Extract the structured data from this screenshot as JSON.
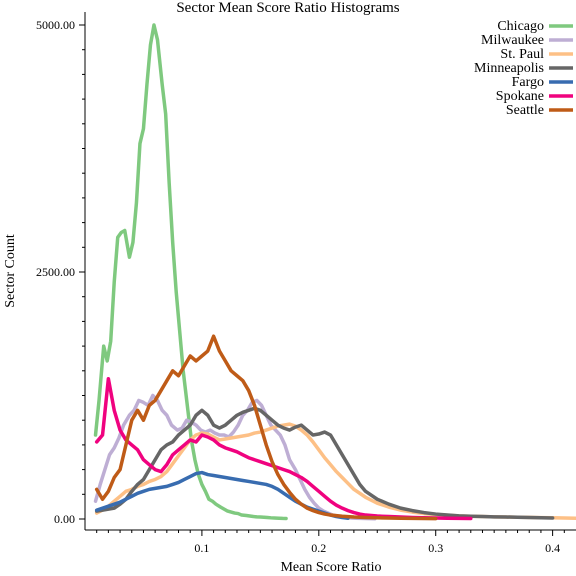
{
  "chart_data": {
    "type": "line",
    "title": "Sector Mean Score Ratio Histograms",
    "xlabel": "Mean Score Ratio",
    "ylabel": "Sector Count",
    "xlim": [
      0.0,
      0.42
    ],
    "ylim": [
      0,
      5000
    ],
    "xticks": [
      0.1,
      0.2,
      0.3,
      0.4
    ],
    "xtick_labels": [
      "0.1",
      "0.2",
      "0.3",
      "0.4"
    ],
    "yticks": [
      0,
      2500,
      5000
    ],
    "ytick_labels": [
      "0.00",
      "2500.00",
      "5000.00"
    ],
    "grid": false,
    "legend_position": "top-right",
    "series": [
      {
        "name": "Chicago",
        "color": "#7fc97f",
        "x": [
          0.009,
          0.012,
          0.016,
          0.019,
          0.022,
          0.025,
          0.028,
          0.031,
          0.034,
          0.038,
          0.041,
          0.044,
          0.047,
          0.05,
          0.053,
          0.056,
          0.059,
          0.062,
          0.066,
          0.069,
          0.072,
          0.075,
          0.078,
          0.081,
          0.084,
          0.088,
          0.091,
          0.094,
          0.097,
          0.1,
          0.103,
          0.106,
          0.109,
          0.112,
          0.116,
          0.119,
          0.122,
          0.125,
          0.128,
          0.131,
          0.134,
          0.138,
          0.141,
          0.144,
          0.147,
          0.15,
          0.153,
          0.156,
          0.159,
          0.162,
          0.166,
          0.169,
          0.172
        ],
        "values": [
          850,
          1200,
          1750,
          1600,
          1800,
          2400,
          2850,
          2900,
          2920,
          2650,
          2800,
          3200,
          3800,
          3950,
          4400,
          4800,
          5000,
          4850,
          4400,
          4100,
          3400,
          2800,
          2300,
          1900,
          1500,
          1100,
          800,
          600,
          450,
          350,
          280,
          200,
          180,
          150,
          120,
          100,
          80,
          70,
          60,
          55,
          40,
          35,
          30,
          25,
          22,
          20,
          18,
          15,
          12,
          10,
          8,
          6,
          5
        ]
      },
      {
        "name": "Milwaukee",
        "color": "#beaed4",
        "x": [
          0.009,
          0.013,
          0.017,
          0.021,
          0.025,
          0.029,
          0.033,
          0.038,
          0.042,
          0.046,
          0.05,
          0.054,
          0.058,
          0.062,
          0.066,
          0.07,
          0.074,
          0.079,
          0.083,
          0.087,
          0.091,
          0.095,
          0.099,
          0.103,
          0.107,
          0.111,
          0.115,
          0.119,
          0.123,
          0.127,
          0.131,
          0.135,
          0.139,
          0.143,
          0.147,
          0.151,
          0.155,
          0.159,
          0.163,
          0.167,
          0.171,
          0.175,
          0.18,
          0.184,
          0.188,
          0.192,
          0.196,
          0.2,
          0.204,
          0.208,
          0.212,
          0.216,
          0.22,
          0.224,
          0.228,
          0.232,
          0.236,
          0.24,
          0.244,
          0.248
        ],
        "values": [
          180,
          350,
          500,
          650,
          720,
          820,
          950,
          1050,
          1100,
          1200,
          1180,
          1150,
          1250,
          1200,
          1100,
          1050,
          950,
          900,
          920,
          1000,
          980,
          950,
          900,
          880,
          900,
          870,
          850,
          850,
          830,
          880,
          950,
          1050,
          1100,
          1180,
          1200,
          1150,
          1050,
          950,
          900,
          850,
          750,
          600,
          500,
          400,
          300,
          220,
          160,
          110,
          80,
          60,
          40,
          30,
          20,
          15,
          10,
          8,
          6,
          5,
          4,
          3
        ]
      },
      {
        "name": "St. Paul",
        "color": "#fdc086",
        "x": [
          0.01,
          0.015,
          0.02,
          0.025,
          0.03,
          0.035,
          0.04,
          0.045,
          0.05,
          0.055,
          0.06,
          0.065,
          0.07,
          0.075,
          0.08,
          0.085,
          0.09,
          0.095,
          0.1,
          0.105,
          0.11,
          0.115,
          0.12,
          0.125,
          0.13,
          0.135,
          0.14,
          0.145,
          0.15,
          0.155,
          0.16,
          0.165,
          0.17,
          0.175,
          0.18,
          0.185,
          0.19,
          0.195,
          0.2,
          0.205,
          0.21,
          0.215,
          0.22,
          0.225,
          0.23,
          0.24,
          0.25,
          0.26,
          0.27,
          0.28,
          0.29,
          0.3,
          0.31,
          0.32,
          0.33,
          0.34,
          0.35,
          0.36,
          0.37,
          0.38,
          0.39,
          0.4,
          0.41,
          0.42
        ],
        "values": [
          60,
          90,
          130,
          180,
          230,
          280,
          300,
          330,
          350,
          380,
          400,
          430,
          480,
          560,
          640,
          720,
          800,
          850,
          870,
          860,
          830,
          800,
          810,
          820,
          830,
          840,
          850,
          870,
          880,
          900,
          920,
          940,
          950,
          960,
          940,
          900,
          850,
          780,
          700,
          620,
          550,
          480,
          420,
          360,
          300,
          220,
          160,
          120,
          90,
          70,
          55,
          45,
          38,
          32,
          28,
          25,
          22,
          20,
          18,
          16,
          14,
          12,
          10,
          8
        ]
      },
      {
        "name": "Minneapolis",
        "color": "#666666",
        "x": [
          0.01,
          0.015,
          0.02,
          0.025,
          0.03,
          0.035,
          0.04,
          0.045,
          0.05,
          0.055,
          0.06,
          0.065,
          0.07,
          0.075,
          0.08,
          0.085,
          0.09,
          0.095,
          0.1,
          0.105,
          0.11,
          0.115,
          0.12,
          0.125,
          0.13,
          0.135,
          0.14,
          0.145,
          0.15,
          0.155,
          0.16,
          0.165,
          0.17,
          0.175,
          0.18,
          0.185,
          0.19,
          0.195,
          0.2,
          0.205,
          0.21,
          0.215,
          0.22,
          0.225,
          0.23,
          0.235,
          0.24,
          0.25,
          0.26,
          0.27,
          0.28,
          0.29,
          0.3,
          0.31,
          0.32,
          0.33,
          0.34,
          0.35,
          0.36,
          0.37,
          0.38,
          0.39,
          0.4
        ],
        "values": [
          80,
          90,
          100,
          110,
          150,
          200,
          280,
          350,
          400,
          500,
          600,
          700,
          750,
          780,
          850,
          900,
          950,
          1050,
          1100,
          1050,
          950,
          920,
          950,
          1000,
          1050,
          1080,
          1100,
          1120,
          1100,
          1050,
          1000,
          950,
          920,
          900,
          930,
          950,
          900,
          850,
          860,
          880,
          850,
          750,
          650,
          550,
          450,
          350,
          280,
          200,
          150,
          110,
          85,
          65,
          50,
          40,
          32,
          28,
          25,
          22,
          20,
          18,
          15,
          12,
          10
        ]
      },
      {
        "name": "Fargo",
        "color": "#386cb0",
        "x": [
          0.01,
          0.015,
          0.02,
          0.025,
          0.03,
          0.035,
          0.04,
          0.045,
          0.05,
          0.055,
          0.06,
          0.065,
          0.07,
          0.075,
          0.08,
          0.085,
          0.09,
          0.095,
          0.1,
          0.105,
          0.11,
          0.115,
          0.12,
          0.125,
          0.13,
          0.135,
          0.14,
          0.145,
          0.15,
          0.155,
          0.16,
          0.165,
          0.17,
          0.175,
          0.18,
          0.185,
          0.19,
          0.195,
          0.2,
          0.205,
          0.21,
          0.215,
          0.22,
          0.225
        ],
        "values": [
          90,
          110,
          130,
          150,
          170,
          200,
          230,
          260,
          280,
          300,
          310,
          320,
          330,
          350,
          370,
          400,
          430,
          460,
          470,
          450,
          440,
          430,
          420,
          410,
          400,
          390,
          380,
          370,
          360,
          350,
          330,
          300,
          260,
          220,
          180,
          150,
          120,
          100,
          80,
          60,
          40,
          25,
          15,
          8
        ]
      },
      {
        "name": "Spokane",
        "color": "#f0027f",
        "x": [
          0.01,
          0.015,
          0.02,
          0.025,
          0.03,
          0.035,
          0.04,
          0.045,
          0.05,
          0.055,
          0.06,
          0.065,
          0.07,
          0.075,
          0.08,
          0.085,
          0.09,
          0.095,
          0.1,
          0.105,
          0.11,
          0.115,
          0.12,
          0.125,
          0.13,
          0.135,
          0.14,
          0.145,
          0.15,
          0.155,
          0.16,
          0.165,
          0.17,
          0.175,
          0.18,
          0.185,
          0.19,
          0.195,
          0.2,
          0.205,
          0.21,
          0.215,
          0.22,
          0.225,
          0.23,
          0.235,
          0.24,
          0.25,
          0.26,
          0.27,
          0.28,
          0.29,
          0.3,
          0.31,
          0.32,
          0.33
        ],
        "values": [
          780,
          850,
          1420,
          1100,
          900,
          800,
          750,
          700,
          600,
          550,
          500,
          480,
          550,
          650,
          700,
          750,
          800,
          780,
          850,
          830,
          800,
          750,
          720,
          700,
          680,
          650,
          620,
          600,
          580,
          560,
          540,
          520,
          500,
          480,
          450,
          420,
          380,
          330,
          280,
          230,
          180,
          140,
          110,
          85,
          65,
          50,
          40,
          30,
          25,
          20,
          15,
          12,
          10,
          8,
          6,
          5
        ]
      },
      {
        "name": "Seattle",
        "color": "#bf5b17",
        "x": [
          0.01,
          0.015,
          0.02,
          0.025,
          0.03,
          0.035,
          0.04,
          0.045,
          0.05,
          0.055,
          0.06,
          0.065,
          0.07,
          0.075,
          0.08,
          0.085,
          0.09,
          0.095,
          0.1,
          0.105,
          0.11,
          0.115,
          0.12,
          0.125,
          0.13,
          0.135,
          0.14,
          0.145,
          0.15,
          0.155,
          0.16,
          0.165,
          0.17,
          0.175,
          0.18,
          0.185,
          0.19,
          0.195,
          0.2,
          0.205,
          0.21,
          0.22,
          0.23,
          0.24,
          0.25,
          0.26,
          0.27,
          0.28,
          0.29,
          0.3
        ],
        "values": [
          300,
          200,
          280,
          420,
          500,
          750,
          1000,
          1100,
          1000,
          1150,
          1200,
          1300,
          1400,
          1500,
          1450,
          1550,
          1650,
          1600,
          1650,
          1700,
          1850,
          1700,
          1600,
          1500,
          1450,
          1400,
          1300,
          1150,
          950,
          750,
          580,
          450,
          350,
          270,
          200,
          150,
          110,
          85,
          65,
          50,
          40,
          28,
          20,
          15,
          12,
          10,
          8,
          6,
          5,
          4
        ]
      }
    ]
  }
}
